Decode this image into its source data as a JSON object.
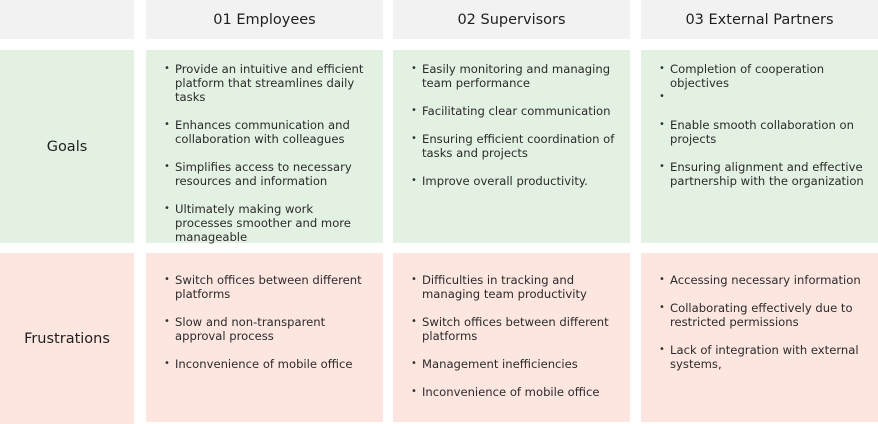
{
  "columns": [
    {
      "title": "01 Employees"
    },
    {
      "title": "02 Supervisors"
    },
    {
      "title": "03 External Partners"
    }
  ],
  "rows": {
    "goals": {
      "label": "Goals",
      "cells": [
        [
          "Provide an intuitive and efficient platform that streamlines daily tasks",
          "Enhances communication and collaboration with colleagues",
          "Simplifies access to necessary resources and information",
          "Ultimately making work processes smoother and more manageable"
        ],
        [
          "Easily monitoring and managing team performance",
          "Facilitating clear communication",
          "Ensuring efficient coordination of tasks and projects",
          "Improve overall productivity."
        ],
        [
          "Completion of cooperation objectives",
          "",
          "Enable smooth collaboration on projects",
          "Ensuring alignment and effective partnership with the organization"
        ]
      ]
    },
    "frustrations": {
      "label": "Frustrations",
      "cells": [
        [
          "Switch offices between different platforms",
          "Slow and non-transparent approval process",
          "Inconvenience of mobile office"
        ],
        [
          "Difficulties in tracking and managing team productivity",
          "Switch offices between different platforms",
          "Management inefficiencies",
          "Inconvenience of mobile office"
        ],
        [
          " Accessing necessary information",
          "Collaborating effectively due to restricted permissions",
          " Lack of integration with external systems,"
        ]
      ]
    }
  },
  "colors": {
    "header_bg": "#f2f2f2",
    "goals_bg": "#e3f1e3",
    "frustrations_bg": "#fde6df"
  }
}
